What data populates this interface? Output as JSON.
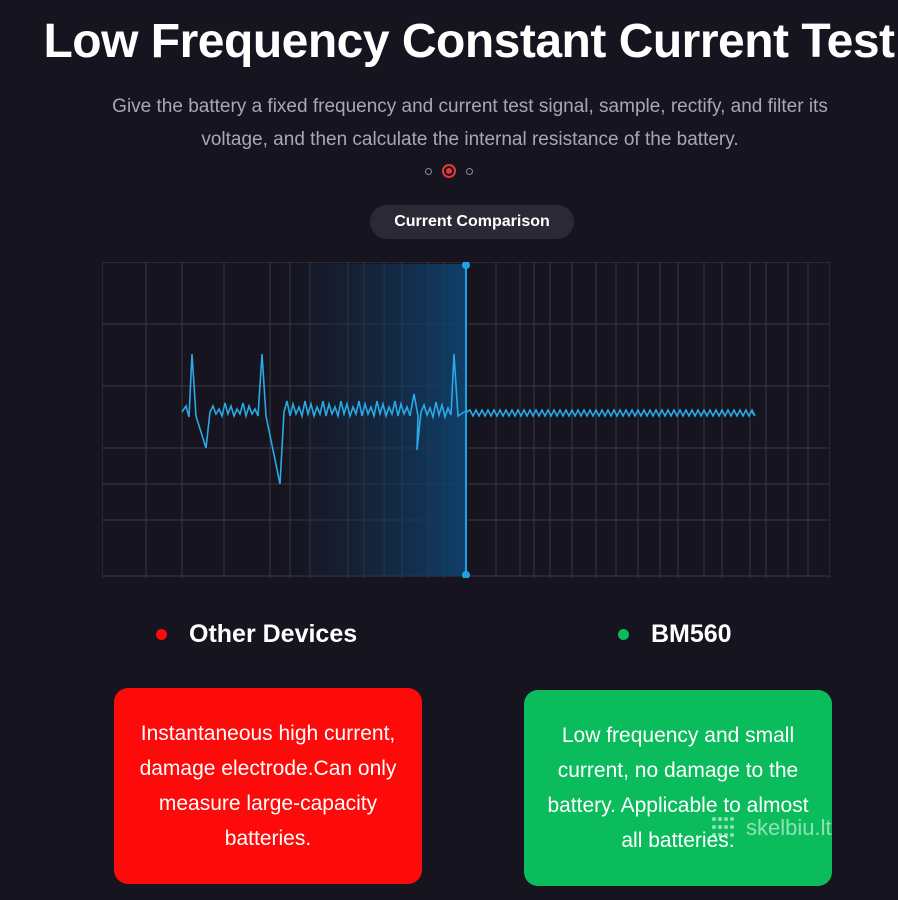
{
  "header": {
    "title": "Low Frequency Constant Current Test",
    "subtitle": "Give the battery a fixed frequency and current test signal, sample, rectify, and filter its voltage, and then calculate the internal resistance of the battery."
  },
  "pager": {
    "count": 3,
    "active_index": 1,
    "active_color": "#e23a3a"
  },
  "section_label": "Current Comparison",
  "colors": {
    "waveform": "#29a9e6",
    "cursor": "#1fa3e0",
    "grid": "#3a3846",
    "other_devices": "#fe0a0a",
    "bm560": "#0bbc5c"
  },
  "legend": {
    "other": {
      "label": "Other Devices",
      "color": "#fe0a0a"
    },
    "bm560": {
      "label": "BM560",
      "color": "#0bbc5c"
    }
  },
  "cards": {
    "other": {
      "text": "Instantaneous high current, damage electrode.Can only measure large-capacity batteries.",
      "color": "#fe0a0a"
    },
    "bm560": {
      "text": "Low frequency and small current, no damage to the battery. Applicable to almost all batteries.",
      "color": "#0bbc5c"
    }
  },
  "watermark": {
    "text": "skelbiu.lt",
    "icon": "skelbiu-logo-icon"
  }
}
